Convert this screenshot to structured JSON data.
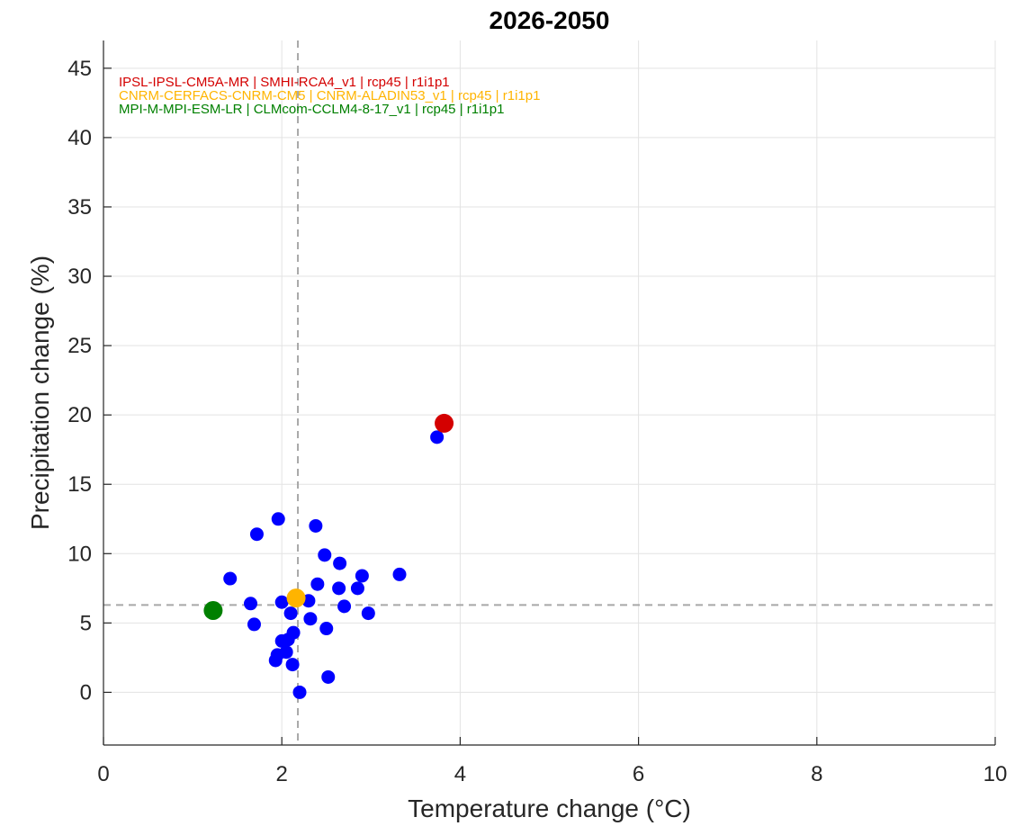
{
  "chart_data": {
    "type": "scatter",
    "title": "2026-2050",
    "xlabel": "Temperature change (°C)",
    "ylabel": "Precipitation change (%)",
    "xlim": [
      0,
      10
    ],
    "ylim": [
      -3.8,
      47
    ],
    "xticks": [
      0,
      2,
      4,
      6,
      8,
      10
    ],
    "yticks": [
      0,
      5,
      10,
      15,
      20,
      25,
      30,
      35,
      40,
      45
    ],
    "grid": true,
    "reference_lines": {
      "x": 2.18,
      "y": 6.3
    },
    "series": [
      {
        "color": "#0000ff",
        "points": [
          [
            1.96,
            12.5
          ],
          [
            2.38,
            12.0
          ],
          [
            1.72,
            11.4
          ],
          [
            2.48,
            9.9
          ],
          [
            2.65,
            9.3
          ],
          [
            3.32,
            8.5
          ],
          [
            2.9,
            8.4
          ],
          [
            1.42,
            8.2
          ],
          [
            2.4,
            7.8
          ],
          [
            2.64,
            7.5
          ],
          [
            2.85,
            7.5
          ],
          [
            2.0,
            6.5
          ],
          [
            2.3,
            6.6
          ],
          [
            1.65,
            6.4
          ],
          [
            2.7,
            6.2
          ],
          [
            2.1,
            5.7
          ],
          [
            2.97,
            5.7
          ],
          [
            2.32,
            5.3
          ],
          [
            1.69,
            4.9
          ],
          [
            2.5,
            4.6
          ],
          [
            2.13,
            4.3
          ],
          [
            2.0,
            3.7
          ],
          [
            2.07,
            3.8
          ],
          [
            1.95,
            2.7
          ],
          [
            2.05,
            2.9
          ],
          [
            1.93,
            2.3
          ],
          [
            2.12,
            2.0
          ],
          [
            2.52,
            1.1
          ],
          [
            2.2,
            0.0
          ],
          [
            3.74,
            18.4
          ]
        ]
      },
      {
        "name": "IPSL-IPSL-CM5A-MR | SMHI-RCA4_v1 | rcp45 | r1i1p1",
        "color": "#d40000",
        "points": [
          [
            3.82,
            19.4
          ]
        ]
      },
      {
        "name": "CNRM-CERFACS-CNRM-CM5 | CNRM-ALADIN53_v1 | rcp45 | r1i1p1",
        "color": "#ffb400",
        "points": [
          [
            2.16,
            6.8
          ]
        ]
      },
      {
        "name": "MPI-M-MPI-ESM-LR | CLMcom-CCLM4-8-17_v1 | rcp45 | r1i1p1",
        "color": "#008000",
        "points": [
          [
            1.23,
            5.9
          ]
        ]
      }
    ]
  }
}
